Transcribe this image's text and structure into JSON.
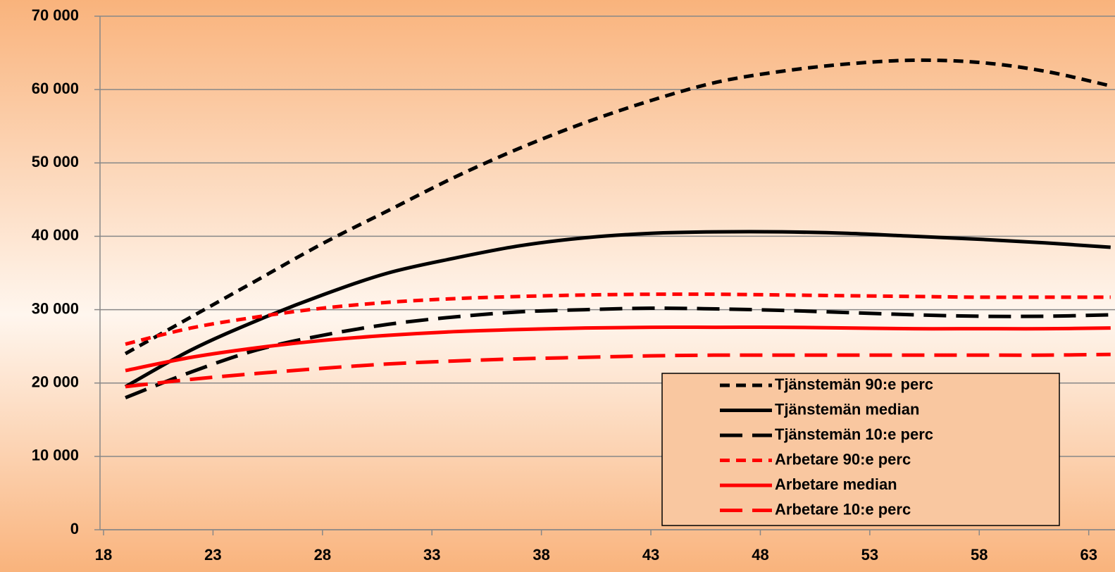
{
  "chart_data": {
    "type": "line",
    "x": [
      19,
      22,
      25,
      28,
      31,
      34,
      37,
      40,
      43,
      46,
      49,
      52,
      55,
      58,
      61,
      64
    ],
    "xlim": [
      18,
      64.2
    ],
    "xticks": [
      18,
      23,
      28,
      33,
      38,
      43,
      48,
      53,
      58,
      63
    ],
    "ylim": [
      0,
      70000
    ],
    "yticks": [
      0,
      {
        "value": 10000,
        "label": "10 000"
      },
      {
        "value": 20000,
        "label": "20 000"
      },
      {
        "value": 30000,
        "label": "30 000"
      },
      {
        "value": 40000,
        "label": "40 000"
      },
      {
        "value": 50000,
        "label": "50 000"
      },
      {
        "value": 60000,
        "label": "60 000"
      },
      {
        "value": 70000,
        "label": "70 000"
      }
    ],
    "grid": true,
    "legend": "lower right",
    "series": [
      {
        "name": "Tjänstemän 90:e perc",
        "color": "#000000",
        "dash": "short",
        "values": [
          24000,
          29000,
          34000,
          39000,
          43500,
          48000,
          52000,
          55500,
          58500,
          61000,
          62500,
          63500,
          64000,
          63700,
          62500,
          60500
        ]
      },
      {
        "name": "Tjänstemän median",
        "color": "#000000",
        "dash": "solid",
        "values": [
          19500,
          24500,
          28500,
          32000,
          35000,
          37000,
          38700,
          39800,
          40400,
          40600,
          40600,
          40400,
          40000,
          39600,
          39100,
          38500
        ]
      },
      {
        "name": "Tjänstemän 10:e perc",
        "color": "#000000",
        "dash": "long",
        "values": [
          18000,
          21500,
          24500,
          26500,
          28000,
          29000,
          29700,
          30000,
          30200,
          30100,
          29900,
          29600,
          29300,
          29100,
          29100,
          29300
        ]
      },
      {
        "name": "Arbetare 90:e perc",
        "color": "#ff0000",
        "dash": "short",
        "values": [
          25300,
          27500,
          29000,
          30200,
          31000,
          31500,
          31800,
          32000,
          32100,
          32100,
          32000,
          31900,
          31800,
          31700,
          31700,
          31700
        ]
      },
      {
        "name": "Arbetare median",
        "color": "#ff0000",
        "dash": "solid",
        "values": [
          21700,
          23500,
          24800,
          25800,
          26500,
          27000,
          27300,
          27500,
          27600,
          27600,
          27600,
          27500,
          27400,
          27400,
          27400,
          27500
        ]
      },
      {
        "name": "Arbetare 10:e perc",
        "color": "#ff0000",
        "dash": "long",
        "values": [
          19500,
          20500,
          21300,
          22000,
          22600,
          23000,
          23300,
          23500,
          23700,
          23800,
          23800,
          23800,
          23800,
          23800,
          23800,
          23900
        ]
      }
    ]
  }
}
